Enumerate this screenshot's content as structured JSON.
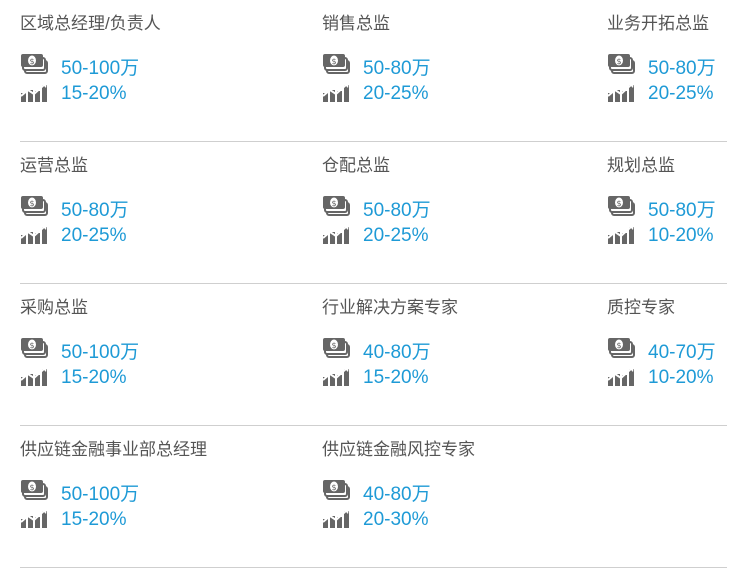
{
  "colors": {
    "value": "#1e9ad6",
    "title": "#555555"
  },
  "icons": {
    "salary": "money-icon",
    "growth": "growth-chart-icon"
  },
  "rows": [
    [
      {
        "title": "区域总经理/负责人",
        "salary": "50-100万",
        "growth": "15-20%"
      },
      {
        "title": "销售总监",
        "salary": "50-80万",
        "growth": "20-25%"
      },
      {
        "title": "业务开拓总监",
        "salary": "50-80万",
        "growth": "20-25%"
      }
    ],
    [
      {
        "title": "运营总监",
        "salary": "50-80万",
        "growth": "20-25%"
      },
      {
        "title": "仓配总监",
        "salary": "50-80万",
        "growth": "20-25%"
      },
      {
        "title": "规划总监",
        "salary": "50-80万",
        "growth": "10-20%"
      }
    ],
    [
      {
        "title": "采购总监",
        "salary": "50-100万",
        "growth": "15-20%"
      },
      {
        "title": "行业解决方案专家",
        "salary": "40-80万",
        "growth": "15-20%"
      },
      {
        "title": "质控专家",
        "salary": "40-70万",
        "growth": "10-20%"
      }
    ],
    [
      {
        "title": "供应链金融事业部总经理",
        "salary": "50-100万",
        "growth": "15-20%"
      },
      {
        "title": "供应链金融风控专家",
        "salary": "40-80万",
        "growth": "20-30%"
      }
    ]
  ]
}
